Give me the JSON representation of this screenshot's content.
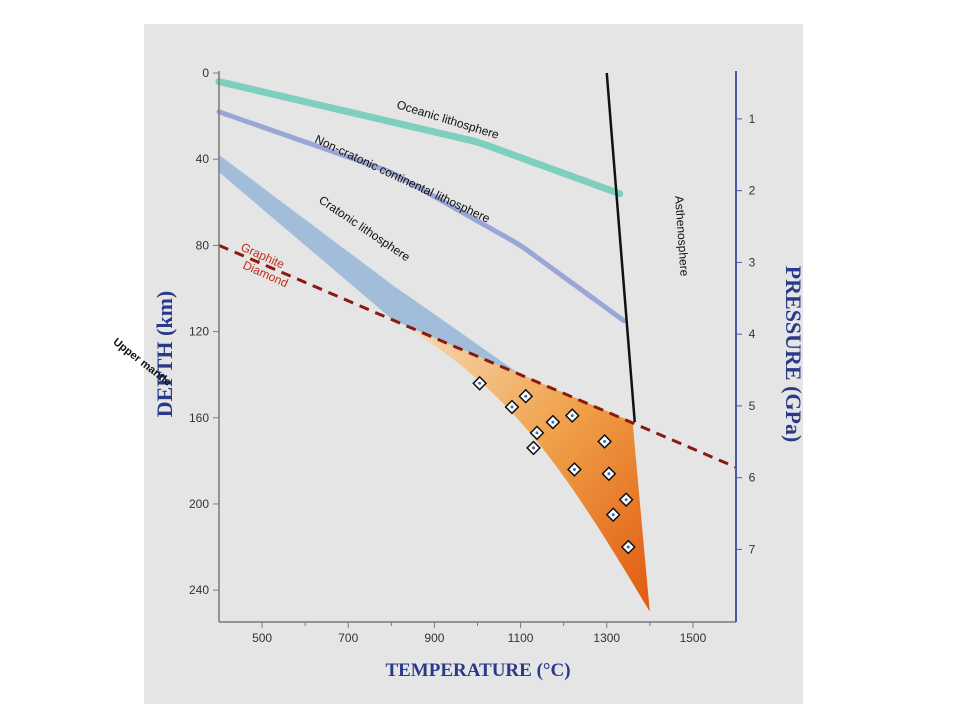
{
  "chart_data": {
    "type": "diagram",
    "xlabel": "TEMPERATURE (°C)",
    "ylabel_left": "DEPTH (km)",
    "ylabel_right": "PRESSURE (GPa)",
    "x_ticks": [
      500,
      700,
      900,
      1100,
      1300,
      1500
    ],
    "y_ticks": [
      0,
      40,
      80,
      120,
      160,
      200,
      240
    ],
    "pressure_ticks": [
      1,
      2,
      3,
      4,
      5,
      6,
      7
    ],
    "xlim": [
      400,
      1600
    ],
    "ylim": [
      0,
      252
    ],
    "series": [
      {
        "name": "Oceanic lithosphere",
        "points": [
          [
            400,
            4
          ],
          [
            700,
            18
          ],
          [
            1000,
            32
          ],
          [
            1330,
            56
          ]
        ]
      },
      {
        "name": "Non-cratonic continental lithosphere",
        "points": [
          [
            400,
            18
          ],
          [
            800,
            46
          ],
          [
            1100,
            80
          ],
          [
            1340,
            115
          ]
        ]
      },
      {
        "name": "Cratonic lithosphere",
        "points": [
          [
            400,
            38
          ],
          [
            800,
            98
          ],
          [
            1100,
            140
          ],
          [
            1360,
            162
          ]
        ]
      },
      {
        "name": "Asthenosphere",
        "points": [
          [
            1300,
            0
          ],
          [
            1365,
            162
          ]
        ]
      },
      {
        "name": "Graphite / Diamond",
        "points": [
          [
            400,
            80
          ],
          [
            1600,
            183
          ]
        ]
      }
    ],
    "diamonds": [
      [
        1005,
        144
      ],
      [
        1080,
        155
      ],
      [
        1112,
        150
      ],
      [
        1138,
        167
      ],
      [
        1175,
        162
      ],
      [
        1220,
        159
      ],
      [
        1130,
        174
      ],
      [
        1225,
        184
      ],
      [
        1295,
        171
      ],
      [
        1305,
        186
      ],
      [
        1315,
        205
      ],
      [
        1345,
        198
      ],
      [
        1350,
        220
      ]
    ]
  },
  "labels": {
    "oceanic": "Oceanic lithosphere",
    "noncratonic": "Non-cratonic continental lithosphere",
    "cratonic": "Cratonic lithosphere",
    "asthenosphere": "Asthenosphere",
    "graphite": "Graphite",
    "diamond": "Diamond",
    "upper_mantle": "Upper mantle"
  },
  "colors": {
    "oceanic": "#7fcfbf",
    "noncratonic": "#9aa6d6",
    "cratonic": "#9dbbd9",
    "boundary": "#8a1a10",
    "axis": "#4a58a8"
  }
}
